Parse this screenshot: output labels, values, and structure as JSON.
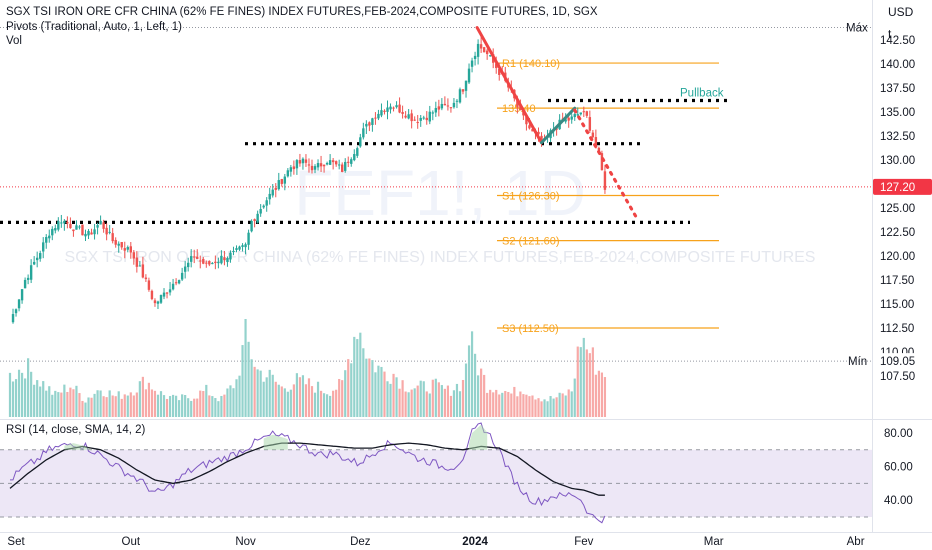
{
  "header": {
    "title": "SGX TSI IRON ORE CFR CHINA (62% FE FINES) INDEX FUTURES,FEB-2024,COMPOSITE FUTURES, 1D, SGX",
    "pivots_label": "Pivots (Traditional, Auto, 1, Left, 1)",
    "vol_label": "Vol"
  },
  "watermark": {
    "symbol": "FEF1!, 1D",
    "name": "SGX TSI IRON ORE CFR CHINA (62% FE FINES) INDEX FUTURES,FEB-2024,COMPOSITE FUTURES"
  },
  "price_scale": {
    "currency": "USD",
    "currency_sub": "t",
    "max_label": "Máx",
    "min_label": "Mín",
    "min_value": "109.05",
    "last_price": "127.20"
  },
  "rsi_label": "RSI (14, close, SMA, 14, 2)",
  "annotations": {
    "pullback": "Pullback"
  },
  "colors": {
    "up": "#26a69a",
    "down": "#ef5350",
    "up_vol": "#93d2cc",
    "down_vol": "#f7a9a7",
    "pivot": "#f7a21b",
    "rsi_line": "#7e57c2",
    "rsi_sma": "#131722",
    "rsi_band": "#ede7f6",
    "last_price": "#f23645",
    "grid_dot": "#9598a1"
  },
  "chart_data": [
    {
      "type": "candlestick",
      "title": "SGX TSI IRON ORE CFR CHINA (62% FE FINES) INDEX FUTURES,FEB-2024,COMPOSITE FUTURES, 1D, SGX",
      "y_ticks": [
        "142.50",
        "140.00",
        "137.50",
        "135.00",
        "132.50",
        "130.00",
        "127.50",
        "125.00",
        "122.50",
        "120.00",
        "117.50",
        "115.00",
        "112.50",
        "110.00",
        "107.50"
      ],
      "ylim": [
        106.0,
        144.5
      ],
      "x_ticks": [
        "Set",
        "Out",
        "Nov",
        "Dez",
        "2024",
        "Fev",
        "Mar",
        "Abr"
      ],
      "x_tick_index": [
        2,
        40,
        78,
        116,
        154,
        190,
        233,
        280
      ],
      "bars": 186,
      "candle_key_closes": [
        [
          0,
          113.0
        ],
        [
          5,
          117.5
        ],
        [
          10,
          120.5
        ],
        [
          13,
          122.5
        ],
        [
          17,
          123.8
        ],
        [
          22,
          122.8
        ],
        [
          26,
          122.2
        ],
        [
          30,
          123.5
        ],
        [
          34,
          121.6
        ],
        [
          40,
          120.5
        ],
        [
          44,
          118.0
        ],
        [
          48,
          115.0
        ],
        [
          52,
          116.4
        ],
        [
          56,
          117.9
        ],
        [
          61,
          120.0
        ],
        [
          65,
          119.0
        ],
        [
          70,
          119.8
        ],
        [
          74,
          120.2
        ],
        [
          78,
          121.0
        ],
        [
          80,
          123.6
        ],
        [
          84,
          125.5
        ],
        [
          89,
          127.5
        ],
        [
          93,
          129.3
        ],
        [
          97,
          129.8
        ],
        [
          101,
          129.1
        ],
        [
          105,
          130.0
        ],
        [
          110,
          129.0
        ],
        [
          114,
          131.0
        ],
        [
          117,
          133.0
        ],
        [
          121,
          134.8
        ],
        [
          126,
          135.8
        ],
        [
          130,
          135.1
        ],
        [
          134,
          134.2
        ],
        [
          138,
          134.6
        ],
        [
          142,
          135.4
        ],
        [
          146,
          135.6
        ],
        [
          150,
          137.5
        ],
        [
          152,
          139.8
        ],
        [
          155,
          142.0
        ],
        [
          158,
          141.0
        ],
        [
          162,
          139.2
        ],
        [
          166,
          137.0
        ],
        [
          169,
          134.8
        ],
        [
          173,
          132.8
        ],
        [
          177,
          131.8
        ],
        [
          180,
          133.3
        ],
        [
          183,
          134.0
        ],
        [
          186,
          134.3
        ],
        [
          189,
          135.0
        ],
        [
          191,
          134.4
        ],
        [
          193,
          132.5
        ],
        [
          195,
          130.4
        ],
        [
          197,
          127.2
        ]
      ],
      "last_close": 127.2,
      "pivot_levels": [
        {
          "label": "R1 (140.10)",
          "value": 140.1
        },
        {
          "label": "135.40",
          "value": 135.4
        },
        {
          "label": "S1 (126.30)",
          "value": 126.3
        },
        {
          "label": "S2 (121.60)",
          "value": 121.6
        },
        {
          "label": "S3 (112.50)",
          "value": 112.5
        }
      ],
      "support_resistance_lines": [
        {
          "style": "dotted",
          "value": 136.2,
          "label": "Pullback"
        },
        {
          "style": "dotted",
          "value": 131.7
        },
        {
          "style": "dotted",
          "value": 123.5
        }
      ],
      "trend_lines": [
        {
          "color": "red",
          "from": [
            154,
            143.8
          ],
          "to": [
            176,
            131.8
          ]
        },
        {
          "color": "teal",
          "from": [
            176,
            131.8
          ],
          "to": [
            187,
            135.4
          ]
        },
        {
          "color": "red",
          "style": "dotted",
          "from": [
            187,
            135.2
          ],
          "to": [
            208,
            123.7
          ]
        }
      ],
      "max_value": 143.8,
      "min_value": 109.05
    },
    {
      "type": "line",
      "title": "RSI (14, close, SMA, 14, 2)",
      "y_ticks": [
        "80.00",
        "60.00",
        "40.00"
      ],
      "ylim": [
        26,
        88
      ],
      "band": [
        30,
        70
      ],
      "series": [
        {
          "key_points": [
            [
              0,
              52
            ],
            [
              5,
              60
            ],
            [
              9,
              64
            ],
            [
              13,
              70
            ],
            [
              17,
              72
            ],
            [
              21,
              74
            ],
            [
              25,
              72
            ],
            [
              29,
              68
            ],
            [
              33,
              63
            ],
            [
              37,
              58
            ],
            [
              41,
              54
            ],
            [
              45,
              49
            ],
            [
              48,
              44
            ],
            [
              51,
              46
            ],
            [
              55,
              51
            ],
            [
              59,
              57
            ],
            [
              63,
              60
            ],
            [
              67,
              63
            ],
            [
              71,
              65
            ],
            [
              75,
              68
            ],
            [
              79,
              72
            ],
            [
              83,
              76
            ],
            [
              87,
              79
            ],
            [
              91,
              77
            ],
            [
              95,
              74
            ],
            [
              99,
              70
            ],
            [
              103,
              67
            ],
            [
              107,
              68
            ],
            [
              111,
              65
            ],
            [
              115,
              62
            ],
            [
              119,
              66
            ],
            [
              123,
              72
            ],
            [
              127,
              74
            ],
            [
              131,
              69
            ],
            [
              135,
              65
            ],
            [
              139,
              63
            ],
            [
              143,
              60
            ],
            [
              147,
              60
            ],
            [
              151,
              67
            ],
            [
              153,
              80
            ],
            [
              156,
              85
            ],
            [
              159,
              78
            ],
            [
              162,
              70
            ],
            [
              165,
              58
            ],
            [
              168,
              49
            ],
            [
              171,
              43
            ],
            [
              174,
              39
            ],
            [
              177,
              40
            ],
            [
              180,
              43
            ],
            [
              183,
              42
            ],
            [
              186,
              44
            ],
            [
              188,
              42
            ],
            [
              190,
              38
            ],
            [
              192,
              31
            ],
            [
              195,
              29
            ]
          ]
        },
        {
          "key_points": [
            [
              0,
              47
            ],
            [
              6,
              56
            ],
            [
              12,
              64
            ],
            [
              18,
              70
            ],
            [
              24,
              72
            ],
            [
              30,
              70
            ],
            [
              36,
              65
            ],
            [
              42,
              58
            ],
            [
              48,
              52
            ],
            [
              54,
              50
            ],
            [
              60,
              52
            ],
            [
              66,
              57
            ],
            [
              72,
              63
            ],
            [
              78,
              68
            ],
            [
              84,
              72
            ],
            [
              90,
              74
            ],
            [
              96,
              74
            ],
            [
              102,
              73
            ],
            [
              108,
              72
            ],
            [
              114,
              71
            ],
            [
              120,
              71
            ],
            [
              126,
              73
            ],
            [
              132,
              74
            ],
            [
              138,
              73
            ],
            [
              144,
              71
            ],
            [
              150,
              70
            ],
            [
              156,
              72
            ],
            [
              162,
              71
            ],
            [
              168,
              66
            ],
            [
              174,
              58
            ],
            [
              180,
              51
            ],
            [
              186,
              47
            ],
            [
              190,
              46
            ],
            [
              195,
              43
            ]
          ]
        }
      ]
    },
    {
      "type": "bar",
      "title": "Vol",
      "key_heights": [
        [
          0,
          0.28
        ],
        [
          5,
          0.35
        ],
        [
          10,
          0.25
        ],
        [
          15,
          0.15
        ],
        [
          20,
          0.22
        ],
        [
          25,
          0.12
        ],
        [
          30,
          0.2
        ],
        [
          35,
          0.14
        ],
        [
          40,
          0.18
        ],
        [
          45,
          0.25
        ],
        [
          50,
          0.16
        ],
        [
          55,
          0.12
        ],
        [
          60,
          0.14
        ],
        [
          65,
          0.18
        ],
        [
          70,
          0.12
        ],
        [
          75,
          0.25
        ],
        [
          78,
          0.55
        ],
        [
          82,
          0.32
        ],
        [
          86,
          0.28
        ],
        [
          90,
          0.2
        ],
        [
          95,
          0.25
        ],
        [
          100,
          0.22
        ],
        [
          105,
          0.18
        ],
        [
          110,
          0.22
        ],
        [
          115,
          0.65
        ],
        [
          119,
          0.4
        ],
        [
          123,
          0.32
        ],
        [
          127,
          0.3
        ],
        [
          131,
          0.22
        ],
        [
          135,
          0.2
        ],
        [
          140,
          0.22
        ],
        [
          145,
          0.18
        ],
        [
          150,
          0.24
        ],
        [
          152,
          0.55
        ],
        [
          155,
          0.35
        ],
        [
          158,
          0.22
        ],
        [
          162,
          0.2
        ],
        [
          166,
          0.16
        ],
        [
          170,
          0.2
        ],
        [
          174,
          0.15
        ],
        [
          178,
          0.12
        ],
        [
          182,
          0.14
        ],
        [
          186,
          0.18
        ],
        [
          189,
          0.55
        ],
        [
          192,
          0.45
        ],
        [
          195,
          0.32
        ]
      ]
    }
  ]
}
